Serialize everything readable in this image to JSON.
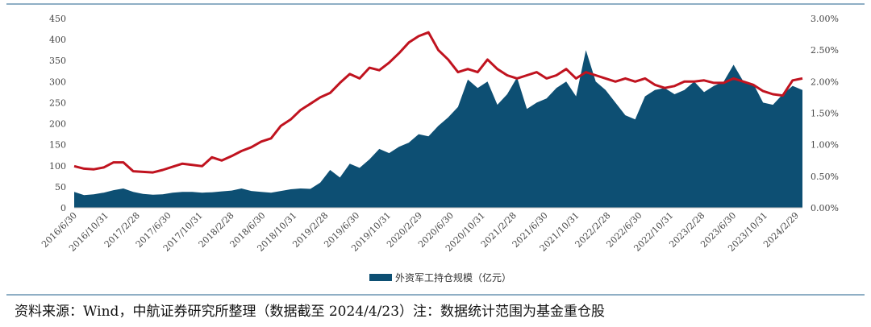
{
  "chart_data": {
    "type": "area",
    "title": "",
    "x_ticks": [
      "2016/6/30",
      "2016/10/31",
      "2017/2/28",
      "2017/6/30",
      "2017/10/31",
      "2018/2/28",
      "2018/6/30",
      "2018/10/31",
      "2019/2/28",
      "2019/6/30",
      "2019/10/31",
      "2020/2/29",
      "2020/6/30",
      "2020/10/31",
      "2021/2/28",
      "2021/6/30",
      "2021/10/31",
      "2022/2/28",
      "2022/6/30",
      "2022/10/31",
      "2023/2/28",
      "2023/6/30",
      "2023/10/31",
      "2024/2/29"
    ],
    "y_left": {
      "min": 0,
      "max": 450,
      "ticks": [
        "0",
        "50",
        "100",
        "150",
        "200",
        "250",
        "300",
        "350",
        "400",
        "450"
      ]
    },
    "y_right": {
      "min": 0,
      "max": 3.0,
      "ticks": [
        "0.00%",
        "0.50%",
        "1.00%",
        "1.50%",
        "2.00%",
        "2.50%",
        "3.00%"
      ]
    },
    "legend": "外资军工持仓规模（亿元）",
    "series": [
      {
        "name": "外资军工持仓规模（亿元）",
        "axis": "left",
        "color": "#0d4f73",
        "date_range": [
          "2016/6/30",
          "2024/4/23"
        ],
        "values": [
          38,
          30,
          32,
          36,
          42,
          46,
          38,
          33,
          31,
          32,
          36,
          38,
          38,
          36,
          37,
          39,
          41,
          46,
          40,
          38,
          36,
          40,
          44,
          46,
          45,
          60,
          90,
          72,
          105,
          95,
          115,
          140,
          130,
          145,
          155,
          175,
          170,
          195,
          215,
          240,
          305,
          285,
          300,
          245,
          270,
          310,
          235,
          250,
          260,
          285,
          300,
          265,
          375,
          300,
          280,
          250,
          220,
          210,
          265,
          280,
          285,
          270,
          280,
          300,
          275,
          290,
          300,
          340,
          300,
          295,
          250,
          245,
          270,
          290,
          280
        ]
      },
      {
        "name": "",
        "axis": "right",
        "color": "#c0131f",
        "date_range": [
          "2016/6/30",
          "2024/4/23"
        ],
        "values": [
          0.66,
          0.62,
          0.61,
          0.64,
          0.72,
          0.72,
          0.58,
          0.57,
          0.56,
          0.6,
          0.65,
          0.7,
          0.68,
          0.66,
          0.8,
          0.75,
          0.82,
          0.9,
          0.96,
          1.05,
          1.1,
          1.3,
          1.4,
          1.55,
          1.65,
          1.75,
          1.82,
          1.98,
          2.12,
          2.05,
          2.22,
          2.18,
          2.3,
          2.45,
          2.62,
          2.72,
          2.78,
          2.5,
          2.35,
          2.15,
          2.2,
          2.15,
          2.35,
          2.2,
          2.1,
          2.05,
          2.1,
          2.15,
          2.05,
          2.1,
          2.2,
          2.05,
          2.15,
          2.1,
          2.05,
          2.0,
          2.05,
          2.0,
          2.05,
          1.95,
          1.9,
          1.93,
          2.0,
          2.0,
          2.02,
          1.98,
          1.98,
          2.05,
          2.0,
          1.95,
          1.85,
          1.8,
          1.78,
          2.02,
          2.05
        ]
      }
    ]
  },
  "source_text": "资料来源：Wind，中航证券研究所整理（数据截至 2024/4/23）注：数据统计范围为基金重仓股"
}
